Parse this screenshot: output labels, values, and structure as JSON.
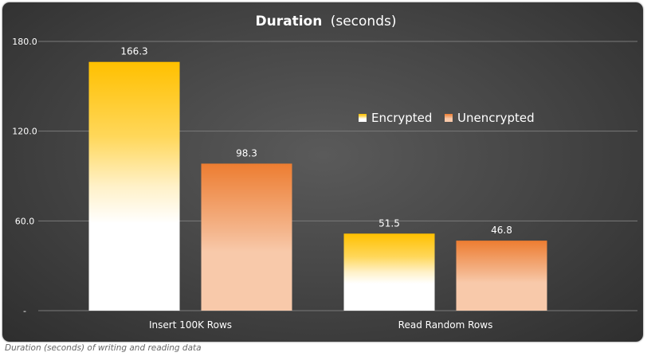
{
  "caption": "Duration (seconds) of writing and reading data",
  "chart_data": {
    "type": "bar",
    "title": "Duration",
    "title_suffix": "(seconds)",
    "categories": [
      "Insert 100K Rows",
      "Read Random Rows"
    ],
    "series": [
      {
        "name": "Encrypted",
        "values": [
          166.3,
          51.5
        ],
        "value_labels": [
          "166.3",
          "51.5"
        ],
        "color": "#ffc000"
      },
      {
        "name": "Unencrypted",
        "values": [
          98.3,
          46.8
        ],
        "value_labels": [
          "98.3",
          "46.8"
        ],
        "color": "#ed7d31"
      }
    ],
    "ylim": [
      0,
      180
    ],
    "y_ticks": [
      0,
      60,
      120,
      180
    ],
    "y_tick_labels": [
      "-",
      "60.0",
      "120.0",
      "180.0"
    ],
    "grid": true,
    "legend_position": "right, upper-middle"
  }
}
